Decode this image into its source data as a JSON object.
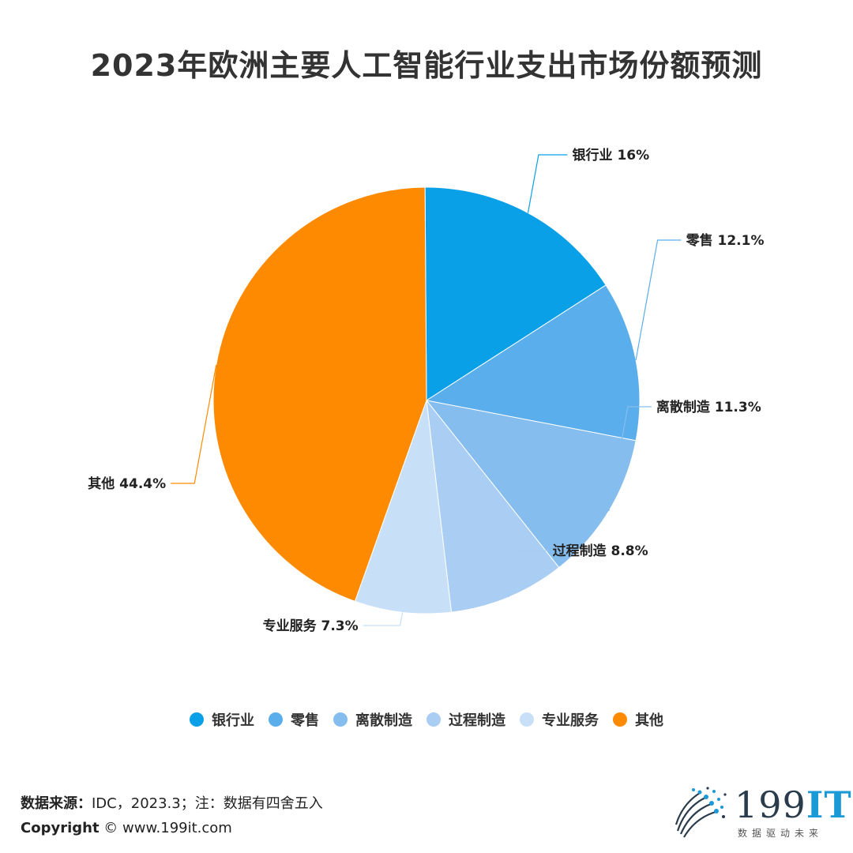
{
  "title": "2023年欧洲主要人工智能行业支出市场份额预测",
  "chart_data": {
    "type": "pie",
    "title": "2023年欧洲主要人工智能行业支出市场份额预测",
    "unit": "%",
    "slices": [
      {
        "name": "银行业",
        "value": 16.0,
        "label": "银行业 16%",
        "color": "#0aa0e8"
      },
      {
        "name": "零售",
        "value": 12.1,
        "label": "零售 12.1%",
        "color": "#5aaeec"
      },
      {
        "name": "离散制造",
        "value": 11.3,
        "label": "离散制造 11.3%",
        "color": "#86bdef"
      },
      {
        "name": "过程制造",
        "value": 8.8,
        "label": "过程制造 8.8%",
        "color": "#a9cdf3"
      },
      {
        "name": "专业服务",
        "value": 7.3,
        "label": "专业服务 7.3%",
        "color": "#c8e0f7"
      },
      {
        "name": "其他",
        "value": 44.4,
        "label": "其他 44.4%",
        "color": "#fe8a02"
      }
    ],
    "legend_position": "bottom"
  },
  "footer": {
    "source_label": "数据来源：",
    "source_text": "IDC，2023.3；注：数据有四舍五入",
    "copyright_label": "Copyright",
    "copyright_text": "© www.199it.com"
  },
  "logo": {
    "name": "199",
    "name_accent": "IT",
    "tagline": "数据驱动未来"
  }
}
